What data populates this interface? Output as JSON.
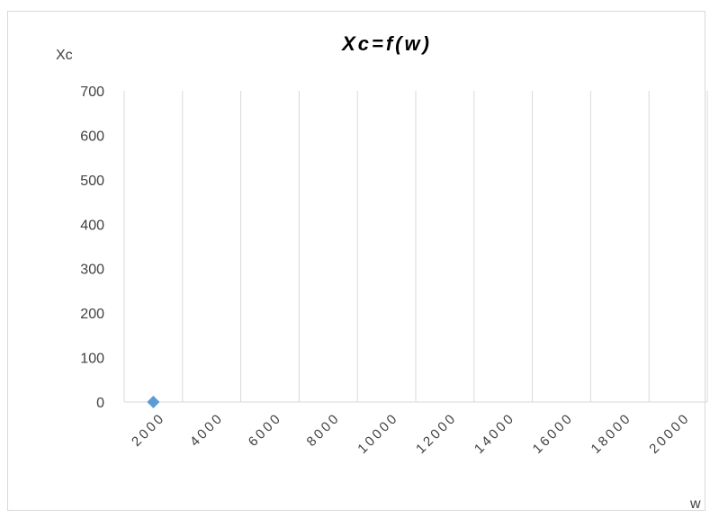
{
  "chart_data": {
    "type": "scatter",
    "title": "Xc=f(w)",
    "xlabel": "w",
    "ylabel": "Xc",
    "x_ticks": [
      "2000",
      "4000",
      "6000",
      "8000",
      "10000",
      "12000",
      "14000",
      "16000",
      "18000",
      "20000"
    ],
    "y_ticks": [
      "0",
      "100",
      "200",
      "300",
      "400",
      "500",
      "600",
      "700"
    ],
    "xlim": [
      1000,
      21000
    ],
    "ylim": [
      0,
      700
    ],
    "grid": "vertical",
    "legend": "none",
    "series": [
      {
        "points": [
          {
            "x": 2000,
            "y": 0
          }
        ],
        "color": "#5b9bd5",
        "marker": "diamond"
      }
    ]
  }
}
